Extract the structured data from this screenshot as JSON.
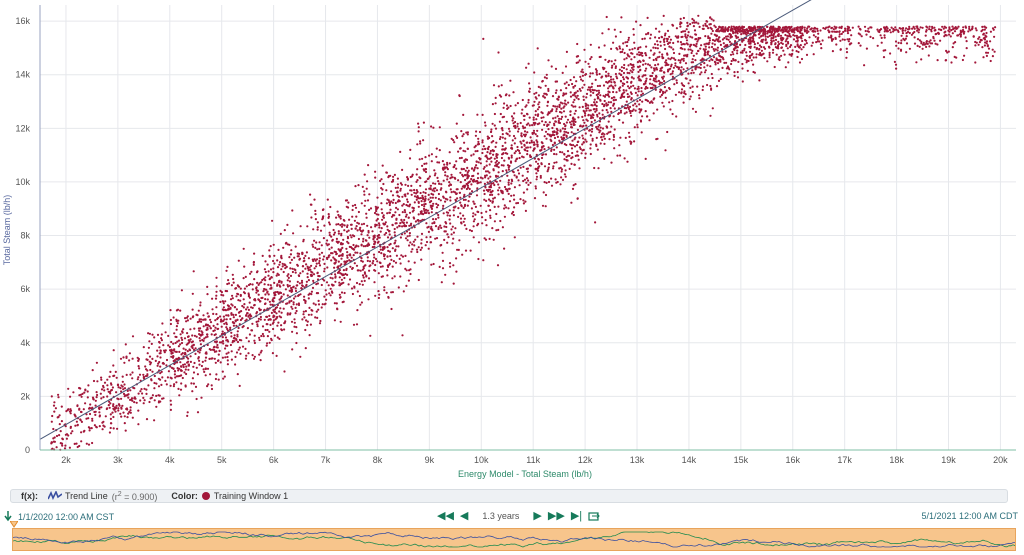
{
  "chart_data": {
    "type": "scatter",
    "xlabel": "Energy Model - Total Steam (lb/h)",
    "ylabel": "Total Steam (lb/h)",
    "xlim": [
      1500,
      20300
    ],
    "ylim": [
      0,
      16600
    ],
    "x_ticks": [
      "2k",
      "3k",
      "4k",
      "5k",
      "6k",
      "7k",
      "8k",
      "9k",
      "10k",
      "11k",
      "12k",
      "13k",
      "14k",
      "15k",
      "16k",
      "17k",
      "18k",
      "19k",
      "20k"
    ],
    "y_ticks": [
      "0",
      "2k",
      "4k",
      "6k",
      "8k",
      "10k",
      "12k",
      "14k",
      "16k"
    ],
    "grid": true,
    "series": [
      {
        "name": "Training Window 1",
        "color": "#a3173a",
        "trend": [
          {
            "x": 1600,
            "y": 400
          },
          {
            "x": 2000,
            "y": 800
          },
          {
            "x": 3000,
            "y": 2000
          },
          {
            "x": 4000,
            "y": 3300
          },
          {
            "x": 5000,
            "y": 4500
          },
          {
            "x": 6000,
            "y": 5700
          },
          {
            "x": 7000,
            "y": 6800
          },
          {
            "x": 8000,
            "y": 8000
          },
          {
            "x": 9000,
            "y": 9200
          },
          {
            "x": 10000,
            "y": 10300
          },
          {
            "x": 11000,
            "y": 11500
          },
          {
            "x": 12000,
            "y": 12600
          },
          {
            "x": 13000,
            "y": 13800
          },
          {
            "x": 14000,
            "y": 14800
          },
          {
            "x": 14600,
            "y": 15300
          },
          {
            "x": 15200,
            "y": 15500
          },
          {
            "x": 16000,
            "y": 15500
          },
          {
            "x": 17000,
            "y": 15500
          },
          {
            "x": 18000,
            "y": 15500
          },
          {
            "x": 19000,
            "y": 15500
          },
          {
            "x": 20000,
            "y": 15500
          }
        ],
        "spread": [
          {
            "x": 2000,
            "y": 700
          },
          {
            "x": 4000,
            "y": 850
          },
          {
            "x": 6000,
            "y": 950
          },
          {
            "x": 8000,
            "y": 1150
          },
          {
            "x": 10000,
            "y": 1250
          },
          {
            "x": 12000,
            "y": 1100
          },
          {
            "x": 14000,
            "y": 900
          },
          {
            "x": 16000,
            "y": 500
          },
          {
            "x": 20000,
            "y": 500
          }
        ]
      }
    ],
    "trend_line": {
      "name": "Trend Line",
      "r2": "0.900",
      "color": "#4a5a7a",
      "points": [
        {
          "x": 1500,
          "y": 400
        },
        {
          "x": 16900,
          "y": 17400
        }
      ]
    }
  },
  "legend": {
    "fx_label": "f(x):",
    "trend_label": "Trend Line",
    "r2_prefix": "(r",
    "r2_sup": "2",
    "r2_value": " = 0.900)",
    "color_label": "Color:",
    "series_label": "Training Window 1"
  },
  "navigation": {
    "start_time": "1/1/2020 12:00 AM  CST",
    "end_time": "5/1/2021 12:00 AM  CDT",
    "span": "1.3 years"
  },
  "colors": {
    "point": "#a3173a",
    "trend": "#4a5a7a",
    "timeline_bg": "#f7c58c",
    "timeline_line_blue": "#3a4fa0",
    "timeline_line_green": "#1e8a4e",
    "nav_green": "#167a5a"
  }
}
